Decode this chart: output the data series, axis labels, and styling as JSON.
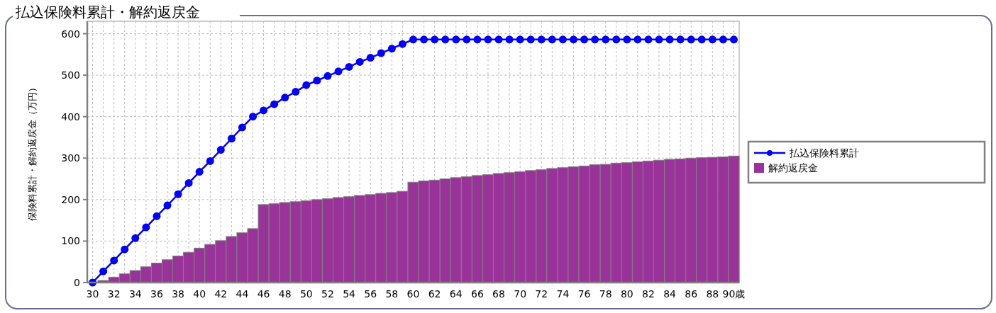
{
  "chart_data": {
    "type": "bar",
    "title": "払込保険料累計・解約返戻金",
    "ylabel": "保険料累計・解約返戻金（万円）",
    "categories": [
      "30",
      null,
      "32",
      null,
      "34",
      null,
      "36",
      null,
      "38",
      null,
      "40",
      null,
      "42",
      null,
      "44",
      null,
      "46",
      null,
      "48",
      null,
      "50",
      null,
      "52",
      null,
      "54",
      null,
      "56",
      null,
      "58",
      null,
      "60",
      null,
      "62",
      null,
      "64",
      null,
      "66",
      null,
      "68",
      null,
      "70",
      null,
      "72",
      null,
      "74",
      null,
      "76",
      null,
      "78",
      null,
      "80",
      null,
      "82",
      null,
      "84",
      null,
      "86",
      null,
      "88",
      null,
      "90歳"
    ],
    "series": [
      {
        "name": "払込保険料累計",
        "type": "line",
        "color": "#0000ff",
        "marker": "circle",
        "line_style": "solid",
        "values": [
          0,
          27,
          53,
          80,
          107,
          133,
          160,
          186,
          213,
          240,
          267,
          293,
          320,
          347,
          374,
          400,
          415,
          430,
          446,
          460,
          476,
          487,
          498,
          509,
          520,
          532,
          542,
          553,
          564,
          575,
          586,
          586,
          586,
          586,
          586,
          586,
          586,
          586,
          586,
          586,
          586,
          586,
          586,
          586,
          586,
          586,
          586,
          586,
          586,
          586,
          586,
          586,
          586,
          586,
          586,
          586,
          586,
          586,
          586,
          586,
          586
        ]
      },
      {
        "name": "解約返戻金",
        "color": "#993399",
        "values": [
          0,
          5,
          13,
          21,
          29,
          38,
          47,
          55,
          64,
          73,
          83,
          92,
          101,
          111,
          120,
          130,
          188,
          190,
          193,
          195,
          197,
          200,
          202,
          205,
          207,
          210,
          212,
          215,
          217,
          220,
          242,
          245,
          247,
          250,
          253,
          255,
          258,
          260,
          263,
          265,
          267,
          270,
          272,
          275,
          277,
          279,
          281,
          284,
          285,
          288,
          289,
          291,
          293,
          295,
          297,
          298,
          300,
          301,
          302,
          303,
          305
        ]
      }
    ],
    "ylim": [
      0,
      630
    ],
    "yticks": [
      0,
      100,
      200,
      300,
      400,
      500,
      600
    ],
    "grid": true,
    "legend": "right"
  }
}
